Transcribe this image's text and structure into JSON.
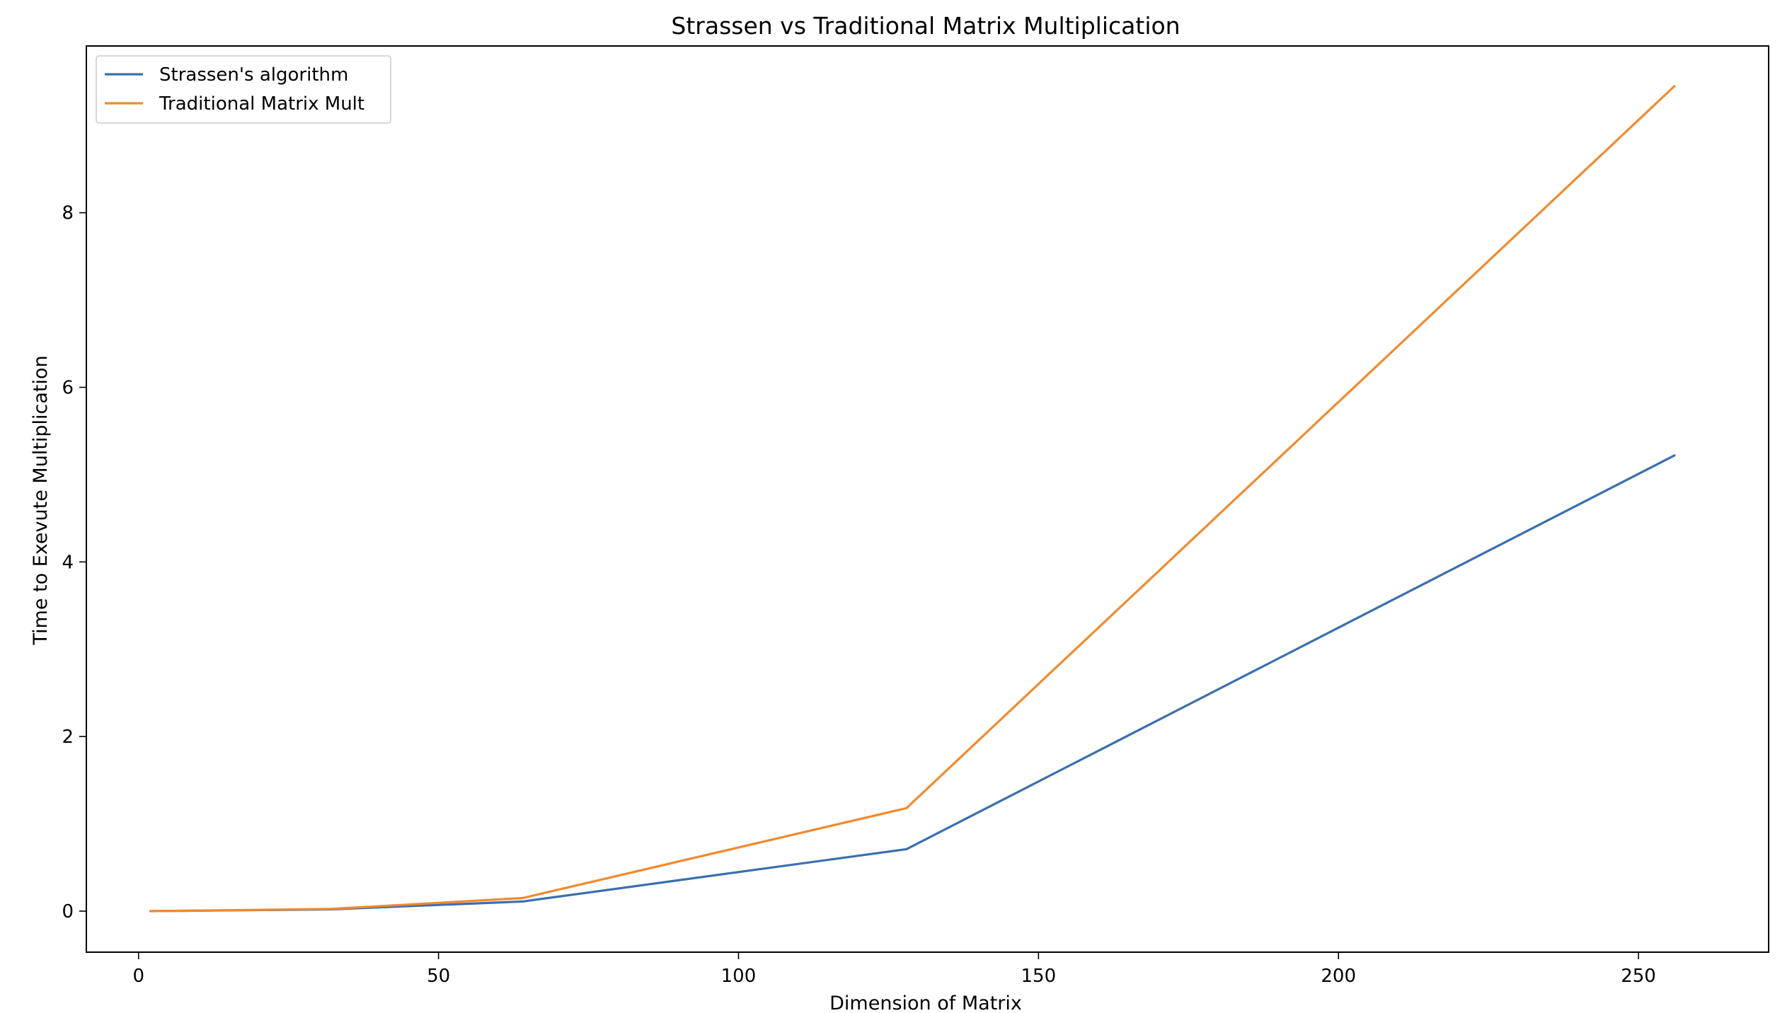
{
  "chart_data": {
    "type": "line",
    "title": "Strassen vs Traditional Matrix Multiplication",
    "xlabel": "Dimension of Matrix",
    "ylabel": "Time to Exevute Multiplication",
    "xlim": [
      -8.7,
      271.7
    ],
    "ylim": [
      -0.47,
      9.91
    ],
    "xticks": [
      0,
      50,
      100,
      150,
      200,
      250
    ],
    "yticks": [
      0,
      2,
      4,
      6,
      8
    ],
    "grid": false,
    "legend_position": "upper-left",
    "x": [
      2,
      32,
      64,
      128,
      256
    ],
    "series": [
      {
        "name": "Strassen's algorithm",
        "color": "#3a6fad",
        "values": [
          0.0,
          0.02,
          0.11,
          0.71,
          5.22
        ]
      },
      {
        "name": "Traditional Matrix Mult",
        "color": "#f08a30",
        "values": [
          0.0,
          0.025,
          0.15,
          1.18,
          9.45
        ]
      }
    ]
  }
}
